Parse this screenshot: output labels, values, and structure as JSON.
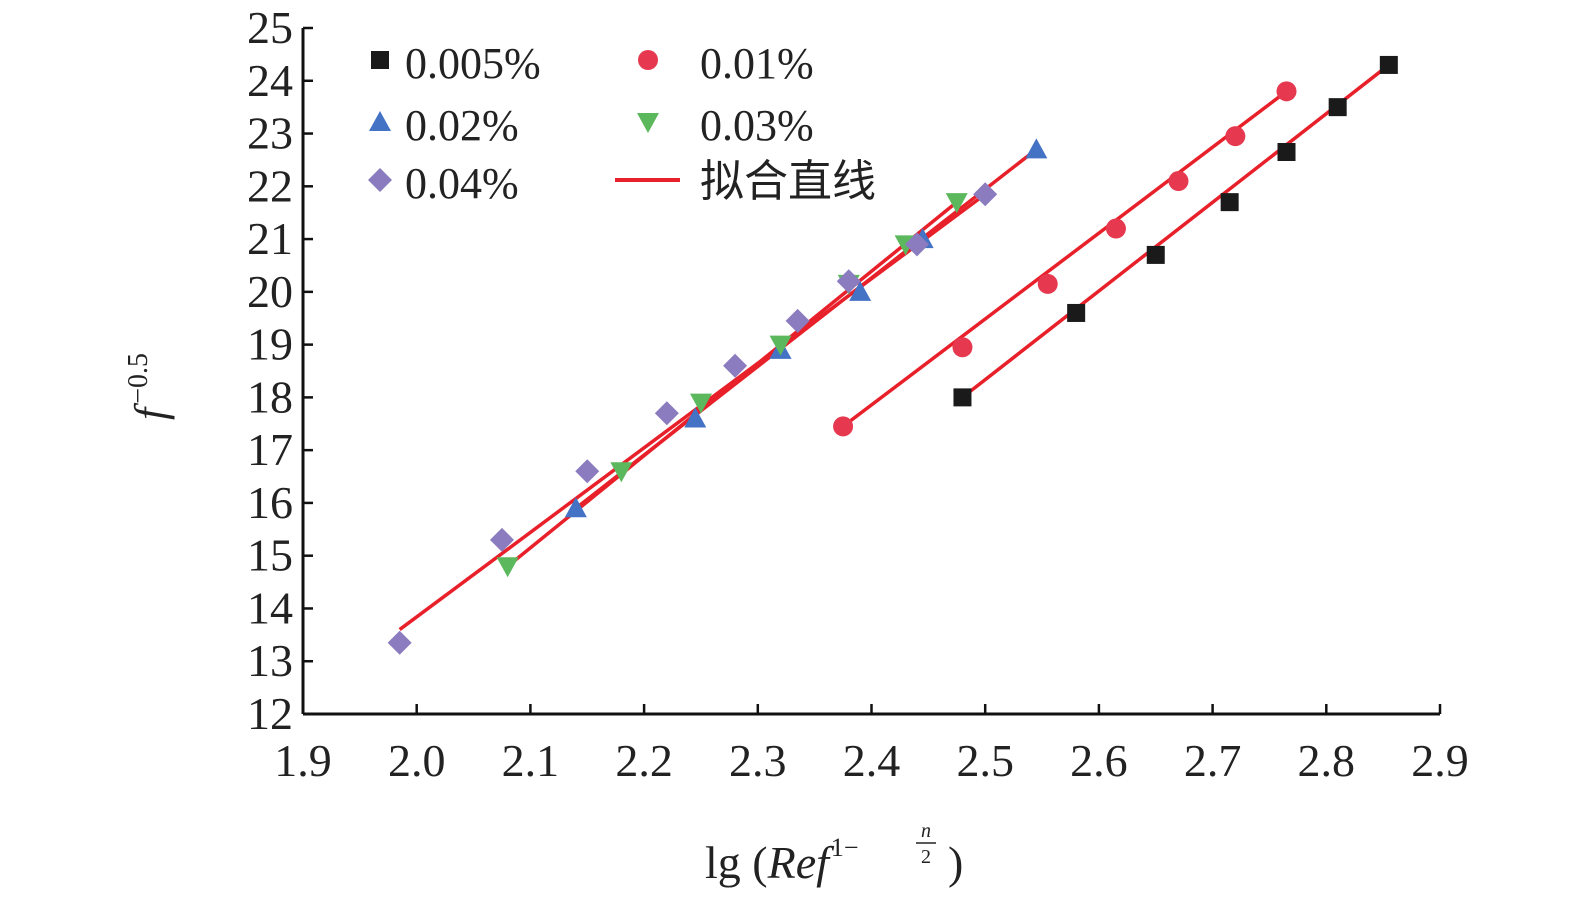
{
  "chart_data": {
    "type": "scatter",
    "xlim": [
      1.9,
      2.9
    ],
    "ylim": [
      12,
      25
    ],
    "x_ticks": [
      "1.9",
      "2.0",
      "2.1",
      "2.2",
      "2.3",
      "2.4",
      "2.5",
      "2.6",
      "2.7",
      "2.8",
      "2.9"
    ],
    "y_ticks": [
      "12",
      "13",
      "14",
      "15",
      "16",
      "17",
      "18",
      "19",
      "20",
      "21",
      "22",
      "23",
      "24",
      "25"
    ],
    "ylabel": {
      "base": "f",
      "sup": "−0.5"
    },
    "xlabel": {
      "prefix": "lg (",
      "italic": "Ref",
      "sup_prefix": "1−",
      "frac_num": "n",
      "frac_den": "2",
      "suffix": ")"
    },
    "fit_color": "#e8202a",
    "series": [
      {
        "name": "0.005%",
        "marker": "square",
        "color": "#1a1a1a",
        "points": [
          [
            2.48,
            18.0
          ],
          [
            2.58,
            19.6
          ],
          [
            2.65,
            20.7
          ],
          [
            2.715,
            21.7
          ],
          [
            2.765,
            22.65
          ],
          [
            2.81,
            23.5
          ],
          [
            2.855,
            24.3
          ]
        ],
        "fit": [
          [
            2.48,
            18.0
          ],
          [
            2.855,
            24.3
          ]
        ]
      },
      {
        "name": "0.01%",
        "marker": "circle",
        "color": "#e6394f",
        "points": [
          [
            2.375,
            17.45
          ],
          [
            2.48,
            18.95
          ],
          [
            2.555,
            20.15
          ],
          [
            2.615,
            21.2
          ],
          [
            2.67,
            22.1
          ],
          [
            2.72,
            22.95
          ],
          [
            2.765,
            23.8
          ]
        ],
        "fit": [
          [
            2.375,
            17.45
          ],
          [
            2.765,
            23.8
          ]
        ]
      },
      {
        "name": "0.02%",
        "marker": "triangle-up",
        "color": "#4472c4",
        "points": [
          [
            2.14,
            15.9
          ],
          [
            2.245,
            17.6
          ],
          [
            2.32,
            18.9
          ],
          [
            2.39,
            20.0
          ],
          [
            2.445,
            21.0
          ],
          [
            2.545,
            22.7
          ]
        ],
        "fit": [
          [
            2.14,
            15.9
          ],
          [
            2.545,
            22.7
          ]
        ]
      },
      {
        "name": "0.03%",
        "marker": "triangle-down",
        "color": "#5cb85c",
        "points": [
          [
            2.08,
            14.8
          ],
          [
            2.18,
            16.6
          ],
          [
            2.25,
            17.9
          ],
          [
            2.32,
            19.0
          ],
          [
            2.38,
            20.15
          ],
          [
            2.43,
            20.9
          ],
          [
            2.475,
            21.7
          ]
        ],
        "fit": [
          [
            2.08,
            14.8
          ],
          [
            2.475,
            21.7
          ]
        ]
      },
      {
        "name": "0.04%",
        "marker": "diamond",
        "color": "#8b7bbf",
        "points": [
          [
            1.985,
            13.35
          ],
          [
            2.075,
            15.3
          ],
          [
            2.15,
            16.6
          ],
          [
            2.22,
            17.7
          ],
          [
            2.28,
            18.6
          ],
          [
            2.335,
            19.45
          ],
          [
            2.38,
            20.2
          ],
          [
            2.44,
            20.9
          ],
          [
            2.5,
            21.85
          ]
        ],
        "fit": [
          [
            1.985,
            13.6
          ],
          [
            2.5,
            21.85
          ]
        ]
      }
    ],
    "legend": {
      "placement": "top-left",
      "fit_label": "拟合直线"
    }
  }
}
